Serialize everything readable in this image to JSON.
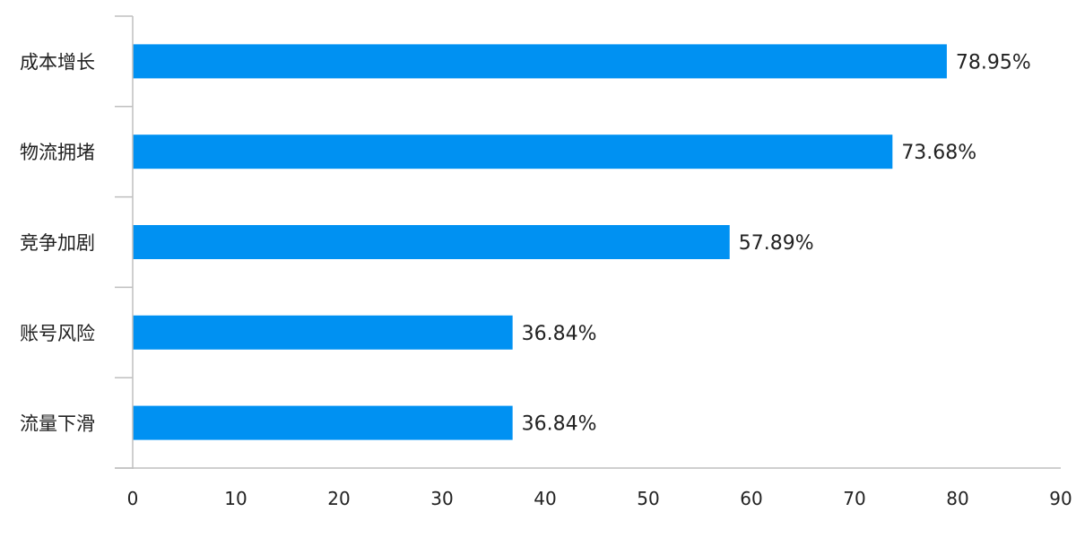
{
  "chart_data": {
    "type": "bar",
    "orientation": "horizontal",
    "categories": [
      "成本增长",
      "物流拥堵",
      "竞争加剧",
      "账号风险",
      "流量下滑"
    ],
    "values": [
      78.95,
      73.68,
      57.89,
      36.84,
      36.84
    ],
    "value_labels": [
      "78.95%",
      "73.68%",
      "57.89%",
      "36.84%",
      "36.84%"
    ],
    "xlim": [
      0,
      90
    ],
    "x_ticks": [
      0,
      10,
      20,
      30,
      40,
      50,
      60,
      70,
      80,
      90
    ],
    "bar_color": "#0091F2",
    "axis_color": "#BFBFBF",
    "grid": false,
    "legend": "none"
  }
}
